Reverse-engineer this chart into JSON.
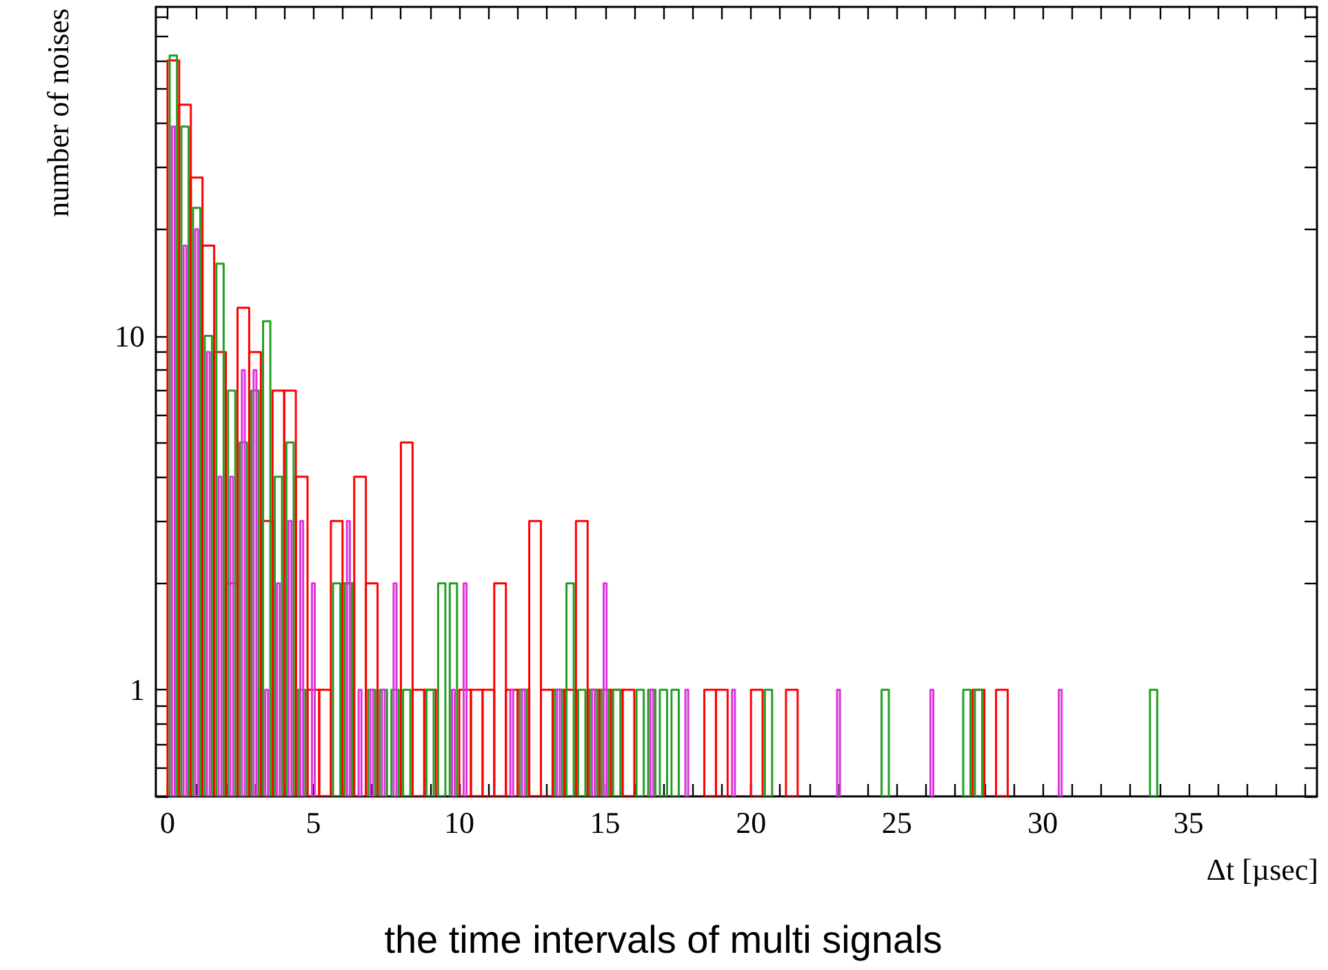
{
  "chart_data": {
    "type": "histogram",
    "xlabel": "Δt [µsec]",
    "ylabel": "number of noises",
    "annotations": [
      "the time intervals of multi signals"
    ],
    "log": "y",
    "bins": [
      0,
      0.4,
      0.8,
      1.2,
      1.6,
      2,
      2.4,
      2.8,
      3.2,
      3.6,
      4,
      4.4,
      4.8,
      5.2,
      5.6,
      6,
      6.4,
      6.8,
      7.2,
      7.6,
      8,
      8.4,
      8.8,
      9.2,
      9.6,
      10,
      10.4,
      10.8,
      11.2,
      11.6,
      12,
      12.4,
      12.8,
      13.2,
      13.6,
      14,
      14.4,
      14.8,
      15.2,
      15.6,
      16,
      16.4,
      16.8,
      17.2,
      17.6,
      18,
      18.4,
      18.8,
      19.2,
      19.6,
      20,
      20.4,
      20.8,
      21.2,
      21.6,
      22,
      22.4,
      22.8,
      23.2,
      23.6,
      24,
      24.4,
      24.8,
      25.2,
      25.6,
      26,
      26.4,
      26.8,
      27.2,
      27.6,
      28,
      28.4,
      28.8,
      29.2,
      29.6,
      30,
      30.4,
      30.8,
      31.2,
      31.6,
      32,
      32.4,
      32.8,
      33.2,
      33.6,
      34
    ],
    "series": [
      {
        "color": "#ff0000",
        "values": [
          60,
          45,
          28,
          18,
          9,
          2,
          12,
          9,
          3,
          7,
          7,
          4,
          1,
          1,
          3,
          2,
          4,
          2,
          null,
          null,
          5,
          1,
          1,
          null,
          null,
          1,
          1,
          1,
          2,
          1,
          1,
          3,
          1,
          1,
          1,
          3,
          1,
          1,
          1,
          1,
          null,
          null,
          null,
          null,
          null,
          null,
          1,
          1,
          null,
          null,
          1,
          null,
          null,
          1,
          null,
          null,
          null,
          null,
          null,
          null,
          null,
          null,
          null,
          null,
          null,
          null,
          null,
          null,
          null,
          1,
          null,
          1,
          null,
          null,
          null,
          null,
          null,
          null,
          null,
          null,
          null,
          null,
          null,
          null,
          null
        ]
      },
      {
        "color": "#22a022",
        "values": [
          62,
          39,
          23,
          10,
          16,
          7,
          5,
          7,
          11,
          4,
          5,
          1,
          null,
          null,
          2,
          2,
          null,
          1,
          1,
          1,
          1,
          null,
          1,
          2,
          2,
          null,
          null,
          null,
          null,
          null,
          1,
          null,
          null,
          1,
          2,
          1,
          1,
          1,
          1,
          null,
          1,
          1,
          1,
          1,
          null,
          null,
          null,
          null,
          null,
          null,
          null,
          1,
          null,
          null,
          null,
          null,
          null,
          null,
          null,
          null,
          null,
          1,
          null,
          null,
          null,
          null,
          null,
          null,
          1,
          1,
          null,
          null,
          null,
          null,
          null,
          null,
          null,
          null,
          null,
          null,
          null,
          null,
          null,
          null,
          1
        ]
      },
      {
        "color": "#dd33dd",
        "values": [
          39,
          18,
          20,
          9,
          4,
          4,
          8,
          8,
          1,
          2,
          3,
          3,
          2,
          null,
          null,
          3,
          1,
          1,
          1,
          2,
          null,
          null,
          null,
          null,
          1,
          2,
          null,
          null,
          null,
          1,
          1,
          null,
          null,
          1,
          null,
          null,
          1,
          2,
          null,
          null,
          null,
          1,
          null,
          null,
          1,
          null,
          null,
          null,
          1,
          null,
          null,
          null,
          null,
          null,
          null,
          null,
          null,
          1,
          null,
          null,
          null,
          null,
          null,
          null,
          null,
          1,
          null,
          null,
          null,
          null,
          null,
          null,
          null,
          null,
          null,
          null,
          1,
          null,
          null,
          null,
          null,
          null,
          null,
          null,
          null
        ]
      }
    ],
    "xlim": [
      -0.4,
      39.4
    ],
    "xticks": [
      0,
      {
        "value": 1,
        "label": null
      },
      {
        "value": 2,
        "label": null
      },
      {
        "value": 3,
        "label": null
      },
      {
        "value": 4,
        "label": null
      },
      5,
      {
        "value": 6,
        "label": null
      },
      {
        "value": 7,
        "label": null
      },
      {
        "value": 8,
        "label": null
      },
      {
        "value": 9,
        "label": null
      },
      10,
      {
        "value": 11,
        "label": null
      },
      {
        "value": 12,
        "label": null
      },
      {
        "value": 13,
        "label": null
      },
      {
        "value": 14,
        "label": null
      },
      15,
      {
        "value": 16,
        "label": null
      },
      {
        "value": 17,
        "label": null
      },
      {
        "value": 18,
        "label": null
      },
      {
        "value": 19,
        "label": null
      },
      20,
      {
        "value": 21,
        "label": null
      },
      {
        "value": 22,
        "label": null
      },
      {
        "value": 23,
        "label": null
      },
      {
        "value": 24,
        "label": null
      },
      25,
      {
        "value": 26,
        "label": null
      },
      {
        "value": 27,
        "label": null
      },
      {
        "value": 28,
        "label": null
      },
      {
        "value": 29,
        "label": null
      },
      30,
      {
        "value": 31,
        "label": null
      },
      {
        "value": 32,
        "label": null
      },
      {
        "value": 33,
        "label": null
      },
      {
        "value": 34,
        "label": null
      },
      35,
      {
        "value": 36,
        "label": null
      },
      {
        "value": 37,
        "label": null
      },
      {
        "value": 38,
        "label": null
      },
      {
        "value": 39,
        "label": null
      }
    ],
    "ylim": [
      0.5,
      85
    ],
    "yticks": [
      {
        "value": 0.5,
        "label": null
      },
      {
        "value": 0.6,
        "label": null
      },
      {
        "value": 0.7,
        "label": null
      },
      {
        "value": 0.8,
        "label": null
      },
      {
        "value": 0.9,
        "label": null
      },
      1,
      {
        "value": 2,
        "label": null
      },
      {
        "value": 3,
        "label": null
      },
      {
        "value": 4,
        "label": null
      },
      {
        "value": 5,
        "label": null
      },
      {
        "value": 6,
        "label": null
      },
      {
        "value": 7,
        "label": null
      },
      {
        "value": 8,
        "label": null
      },
      {
        "value": 9,
        "label": null
      },
      10,
      {
        "value": 20,
        "label": null
      },
      {
        "value": 30,
        "label": null
      },
      {
        "value": 40,
        "label": null
      },
      {
        "value": 50,
        "label": null
      },
      {
        "value": 60,
        "label": null
      },
      {
        "value": 70,
        "label": null
      },
      {
        "value": 80,
        "label": null
      }
    ]
  }
}
